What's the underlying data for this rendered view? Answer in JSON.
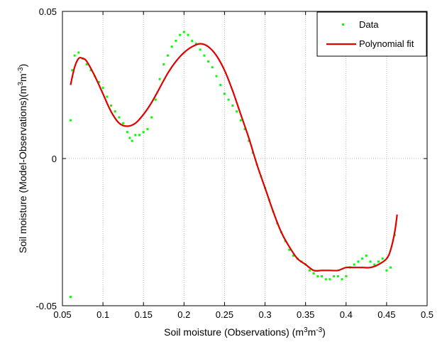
{
  "chart_data": {
    "type": "scatter",
    "title": "",
    "xlabel_main": "Soil moisture (Observations) (m",
    "xlabel_sup1": "3",
    "xlabel_mid": "m",
    "xlabel_sup2": "-3",
    "xlabel_end": ")",
    "ylabel_main": "Soil moisture (Model-Observations)(m",
    "ylabel_sup1": "3",
    "ylabel_mid": "m",
    "ylabel_sup2": "-3",
    "ylabel_end": ")",
    "xlim": [
      0.05,
      0.5
    ],
    "ylim": [
      -0.05,
      0.05
    ],
    "xticks": [
      "0.05",
      "0.1",
      "0.15",
      "0.2",
      "0.25",
      "0.3",
      "0.35",
      "0.4",
      "0.45",
      "0.5"
    ],
    "yticks": [
      "-0.05",
      "0",
      "0.05"
    ],
    "grid": true,
    "legend_position": "top-right",
    "colors": {
      "data": "#00ff00",
      "fit": "#e00000"
    },
    "series": [
      {
        "name": "Data",
        "style": "markers",
        "x": [
          0.06,
          0.06,
          0.062,
          0.065,
          0.07,
          0.075,
          0.08,
          0.085,
          0.09,
          0.095,
          0.1,
          0.105,
          0.11,
          0.115,
          0.12,
          0.125,
          0.13,
          0.133,
          0.136,
          0.14,
          0.145,
          0.15,
          0.155,
          0.16,
          0.165,
          0.17,
          0.175,
          0.18,
          0.185,
          0.19,
          0.195,
          0.2,
          0.205,
          0.21,
          0.215,
          0.22,
          0.225,
          0.23,
          0.235,
          0.24,
          0.245,
          0.25,
          0.255,
          0.26,
          0.265,
          0.27,
          0.275,
          0.28,
          0.285,
          0.29,
          0.295,
          0.3,
          0.305,
          0.31,
          0.315,
          0.32,
          0.325,
          0.33,
          0.335,
          0.34,
          0.345,
          0.35,
          0.355,
          0.36,
          0.365,
          0.37,
          0.375,
          0.38,
          0.385,
          0.39,
          0.395,
          0.4,
          0.405,
          0.41,
          0.415,
          0.42,
          0.425,
          0.43,
          0.435,
          0.44,
          0.445,
          0.45,
          0.455,
          0.46
        ],
        "y": [
          0.013,
          -0.047,
          0.03,
          0.035,
          0.036,
          0.034,
          0.032,
          0.03,
          0.028,
          0.026,
          0.024,
          0.021,
          0.018,
          0.016,
          0.014,
          0.012,
          0.009,
          0.007,
          0.006,
          0.008,
          0.008,
          0.009,
          0.01,
          0.014,
          0.02,
          0.027,
          0.032,
          0.035,
          0.038,
          0.04,
          0.042,
          0.043,
          0.042,
          0.04,
          0.039,
          0.037,
          0.035,
          0.033,
          0.031,
          0.028,
          0.025,
          0.022,
          0.02,
          0.018,
          0.016,
          0.013,
          0.01,
          0.006,
          0.002,
          -0.002,
          -0.006,
          -0.01,
          -0.014,
          -0.018,
          -0.022,
          -0.025,
          -0.028,
          -0.031,
          -0.033,
          -0.034,
          -0.035,
          -0.036,
          -0.038,
          -0.039,
          -0.04,
          -0.04,
          -0.041,
          -0.041,
          -0.04,
          -0.04,
          -0.041,
          -0.04,
          -0.037,
          -0.036,
          -0.035,
          -0.034,
          -0.033,
          -0.035,
          -0.036,
          -0.035,
          -0.034,
          -0.038,
          -0.037,
          -0.026
        ]
      },
      {
        "name": "Polynomial fit",
        "style": "line",
        "x": [
          0.06,
          0.065,
          0.07,
          0.075,
          0.08,
          0.09,
          0.1,
          0.11,
          0.12,
          0.13,
          0.14,
          0.15,
          0.16,
          0.17,
          0.18,
          0.19,
          0.2,
          0.21,
          0.22,
          0.23,
          0.24,
          0.25,
          0.26,
          0.27,
          0.28,
          0.29,
          0.3,
          0.31,
          0.32,
          0.33,
          0.34,
          0.35,
          0.36,
          0.37,
          0.38,
          0.39,
          0.4,
          0.41,
          0.42,
          0.43,
          0.44,
          0.45,
          0.455,
          0.46,
          0.463
        ],
        "y": [
          0.025,
          0.031,
          0.034,
          0.034,
          0.033,
          0.028,
          0.022,
          0.016,
          0.012,
          0.011,
          0.012,
          0.015,
          0.019,
          0.024,
          0.029,
          0.033,
          0.036,
          0.038,
          0.039,
          0.038,
          0.035,
          0.03,
          0.023,
          0.015,
          0.007,
          -0.002,
          -0.01,
          -0.018,
          -0.025,
          -0.03,
          -0.034,
          -0.036,
          -0.038,
          -0.038,
          -0.038,
          -0.038,
          -0.037,
          -0.037,
          -0.037,
          -0.037,
          -0.036,
          -0.034,
          -0.031,
          -0.025,
          -0.019
        ]
      }
    ]
  }
}
